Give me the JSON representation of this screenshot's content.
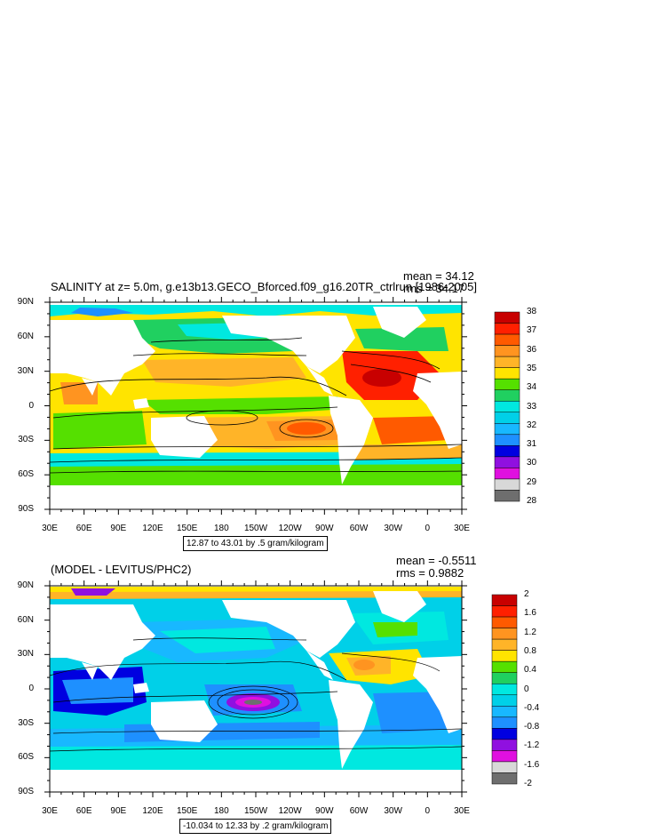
{
  "panel1": {
    "title": "SALINITY at z=   5.0m, g.e13b13.GECO_Bforced.f09_g16.20TR_ctrlrun [1986-2005]",
    "mean": "mean = 34.12",
    "rms": "rms = 34.17",
    "note": "12.87 to 43.01 by .5 gram/kilogram",
    "colorbar": {
      "labels": [
        "38",
        "37",
        "36",
        "35",
        "34",
        "33",
        "32",
        "31",
        "30",
        "29",
        "28"
      ],
      "colors": [
        "#c80000",
        "#ff2000",
        "#ff5a00",
        "#ff9420",
        "#ffb428",
        "#ffe400",
        "#55e000",
        "#20d060",
        "#00e8e0",
        "#00d0e8",
        "#18b8ff",
        "#1e90ff",
        "#0000e0",
        "#9010e0",
        "#e010e0",
        "#d8d8d8",
        "#6e6e6e"
      ]
    }
  },
  "panel2": {
    "title": "(MODEL - LEVITUS/PHC2)",
    "mean": "mean = -0.5511",
    "rms": "rms = 0.9882",
    "note": "-10.034 to 12.33 by .2 gram/kilogram",
    "colorbar": {
      "labels": [
        "2",
        "1.6",
        "1.2",
        "0.8",
        "0.4",
        "0",
        "-0.4",
        "-0.8",
        "-1.2",
        "-1.6",
        "-2"
      ],
      "colors": [
        "#c80000",
        "#ff2000",
        "#ff5a00",
        "#ff9420",
        "#ffb428",
        "#ffe400",
        "#55e000",
        "#20d060",
        "#00e8e0",
        "#00d0e8",
        "#18b8ff",
        "#1e90ff",
        "#0000e0",
        "#9010e0",
        "#e010e0",
        "#d8d8d8",
        "#6e6e6e"
      ]
    }
  },
  "axes": {
    "lat_labels": [
      "90N",
      "60N",
      "30N",
      "0",
      "30S",
      "60S",
      "90S"
    ],
    "lon_labels": [
      "30E",
      "60E",
      "90E",
      "120E",
      "150E",
      "180",
      "150W",
      "120W",
      "90W",
      "60W",
      "30W",
      "0",
      "30E"
    ]
  }
}
